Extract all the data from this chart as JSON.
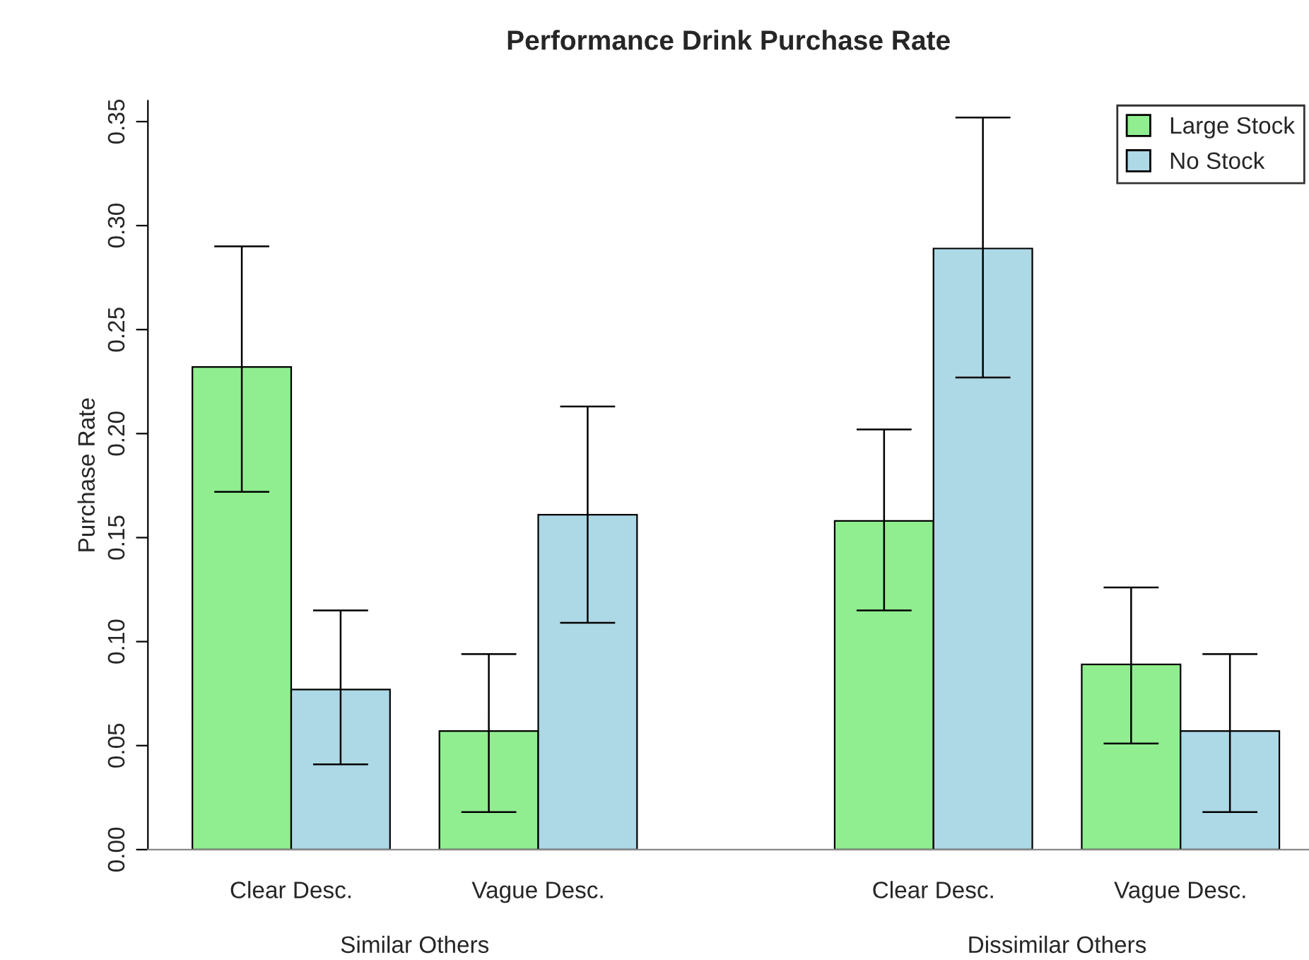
{
  "chart_data": {
    "type": "bar",
    "title": "Performance Drink Purchase Rate",
    "ylabel": "Purchase Rate",
    "categories": [
      "Clear Desc.",
      "Vague Desc.",
      "Clear Desc.",
      "Vague Desc."
    ],
    "series": [
      {
        "name": "Large Stock",
        "color": "#90ee90",
        "values": [
          0.232,
          0.057,
          0.158,
          0.089
        ],
        "errors": [
          [
            0.172,
            0.29
          ],
          [
            0.018,
            0.094
          ],
          [
            0.115,
            0.202
          ],
          [
            0.051,
            0.126
          ]
        ]
      },
      {
        "name": "No Stock",
        "color": "#add8e6",
        "values": [
          0.077,
          0.161,
          0.289,
          0.057
        ],
        "errors": [
          [
            0.041,
            0.115
          ],
          [
            0.109,
            0.213
          ],
          [
            0.227,
            0.352
          ],
          [
            0.018,
            0.094
          ]
        ]
      }
    ],
    "annotations": [
      "Similar Others",
      "Dissimilar Others"
    ],
    "ylim": [
      0,
      0.36
    ],
    "yticks": [
      {
        "value": 0,
        "label": "0.00"
      },
      {
        "value": 0.05,
        "label": "0.05"
      },
      {
        "value": 0.1,
        "label": "0.10"
      },
      {
        "value": 0.15,
        "label": "0.15"
      },
      {
        "value": 0.2,
        "label": "0.20"
      },
      {
        "value": 0.25,
        "label": "0.25"
      },
      {
        "value": 0.3,
        "label": "0.30"
      },
      {
        "value": 0.35,
        "label": "0.35"
      }
    ],
    "grid": false,
    "legend": "top right"
  }
}
